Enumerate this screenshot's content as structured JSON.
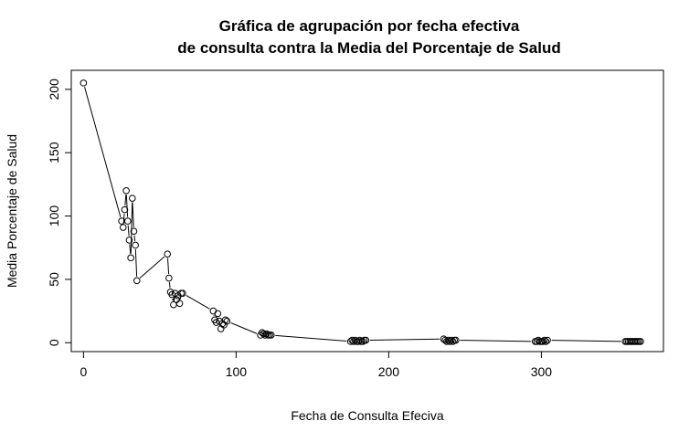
{
  "chart_data": {
    "type": "line",
    "title": "Gráfica de agrupación por fecha efectiva",
    "subtitle": "de consulta contra la Media del Porcentaje de Salud",
    "xlabel": "Fecha de Consulta Efeciva",
    "ylabel": "Media Porcentaje de Salud",
    "xlim": [
      -8,
      380
    ],
    "ylim": [
      -7,
      215
    ],
    "xticks": [
      0,
      100,
      200,
      300
    ],
    "yticks": [
      0,
      50,
      100,
      150,
      200
    ],
    "grid": false,
    "legend": "none",
    "series": [
      {
        "x": [
          0,
          25,
          26,
          27,
          28,
          29,
          30,
          31,
          32,
          33,
          34,
          35,
          55,
          56,
          57,
          58,
          59,
          60,
          61,
          62,
          63,
          64,
          65,
          85,
          86,
          87,
          88,
          89,
          90,
          91,
          92,
          93,
          94,
          116,
          117,
          118,
          119,
          120,
          121,
          122,
          123,
          175,
          176,
          177,
          178,
          179,
          180,
          181,
          182,
          183,
          184,
          185,
          236,
          237,
          238,
          239,
          240,
          241,
          242,
          243,
          244,
          296,
          297,
          298,
          299,
          300,
          301,
          302,
          303,
          304,
          355,
          356,
          357,
          358,
          359,
          360,
          361,
          362,
          363,
          364,
          365
        ],
        "y": [
          205,
          96,
          91,
          105,
          120,
          96,
          81,
          67,
          114,
          88,
          77,
          49,
          70,
          51,
          40,
          38,
          30,
          39,
          34,
          37,
          31,
          39,
          39,
          25,
          18,
          16,
          23,
          17,
          11,
          15,
          14,
          18,
          17,
          6,
          8,
          7,
          6,
          7,
          6,
          6,
          6,
          1,
          2,
          1,
          2,
          1,
          1,
          2,
          1,
          1,
          2,
          2,
          3,
          2,
          1,
          2,
          1,
          2,
          1,
          2,
          2,
          1,
          1,
          2,
          1,
          1,
          1,
          2,
          1,
          2,
          1,
          1,
          1,
          1,
          1,
          1,
          1,
          1,
          1,
          1,
          1
        ]
      }
    ]
  }
}
